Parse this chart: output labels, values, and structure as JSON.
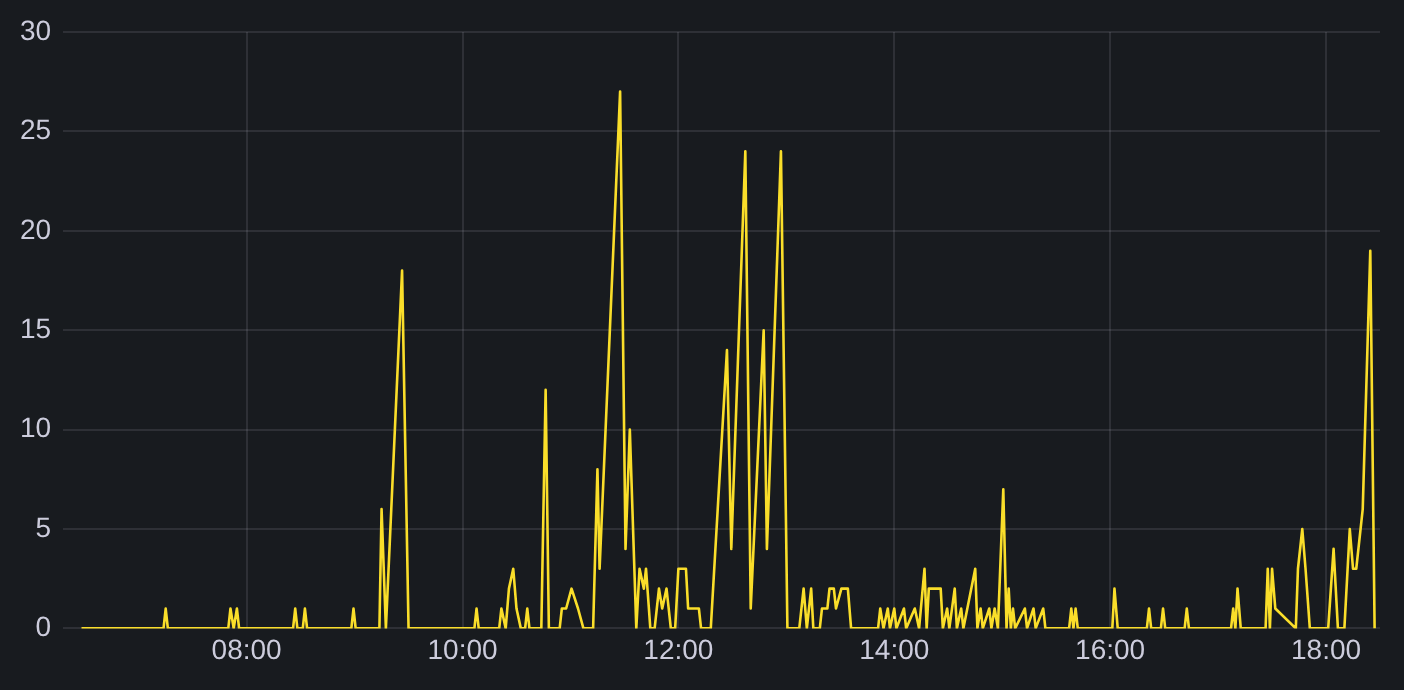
{
  "chart_data": {
    "type": "line",
    "grid": true,
    "marker": "none",
    "line_style": "solid",
    "legend": false,
    "xlim": [
      6.3,
      18.5
    ],
    "ylim": [
      0,
      30
    ],
    "yticks": [
      0,
      5,
      10,
      15,
      20,
      25,
      30
    ],
    "xticks": [
      {
        "value": 8,
        "label": "08:00"
      },
      {
        "value": 10,
        "label": "10:00"
      },
      {
        "value": 12,
        "label": "12:00"
      },
      {
        "value": 14,
        "label": "14:00"
      },
      {
        "value": 16,
        "label": "16:00"
      },
      {
        "value": 18,
        "label": "18:00"
      }
    ],
    "series": [
      {
        "color": "#fade2a",
        "x": [
          6.47,
          7.23,
          7.25,
          7.27,
          7.83,
          7.85,
          7.88,
          7.91,
          7.93,
          8.43,
          8.45,
          8.47,
          8.52,
          8.54,
          8.56,
          8.97,
          8.99,
          9.01,
          9.23,
          9.25,
          9.29,
          9.44,
          9.5,
          10.11,
          10.13,
          10.15,
          10.34,
          10.36,
          10.4,
          10.43,
          10.47,
          10.5,
          10.54,
          10.58,
          10.6,
          10.62,
          10.73,
          10.77,
          10.8,
          10.9,
          10.92,
          10.96,
          11.01,
          11.07,
          11.12,
          11.21,
          11.25,
          11.27,
          11.46,
          11.51,
          11.55,
          11.61,
          11.64,
          11.68,
          11.7,
          11.74,
          11.78,
          11.82,
          11.85,
          11.89,
          11.93,
          11.97,
          12.0,
          12.07,
          12.09,
          12.19,
          12.21,
          12.3,
          12.45,
          12.49,
          12.62,
          12.67,
          12.79,
          12.82,
          12.95,
          13.01,
          13.12,
          13.16,
          13.19,
          13.23,
          13.25,
          13.31,
          13.33,
          13.38,
          13.4,
          13.44,
          13.46,
          13.51,
          13.57,
          13.6,
          13.85,
          13.87,
          13.9,
          13.94,
          13.96,
          14.0,
          14.02,
          14.09,
          14.11,
          14.19,
          14.23,
          14.28,
          14.3,
          14.32,
          14.43,
          14.45,
          14.49,
          14.51,
          14.56,
          14.58,
          14.62,
          14.64,
          14.75,
          14.77,
          14.8,
          14.82,
          14.88,
          14.9,
          14.93,
          14.96,
          15.01,
          15.04,
          15.06,
          15.08,
          15.1,
          15.12,
          15.21,
          15.23,
          15.29,
          15.31,
          15.38,
          15.4,
          15.62,
          15.64,
          15.66,
          15.68,
          15.7,
          16.02,
          16.04,
          16.07,
          16.34,
          16.36,
          16.38,
          16.47,
          16.49,
          16.51,
          16.69,
          16.71,
          16.73,
          17.12,
          17.14,
          17.16,
          17.18,
          17.21,
          17.44,
          17.46,
          17.48,
          17.5,
          17.53,
          17.72,
          17.74,
          17.78,
          17.81,
          17.85,
          18.02,
          18.07,
          18.11,
          18.17,
          18.22,
          18.25,
          18.28,
          18.34,
          18.41,
          18.45
        ],
        "values": [
          0,
          0,
          1,
          0,
          0,
          1,
          0,
          1,
          0,
          0,
          1,
          0,
          0,
          1,
          0,
          0,
          1,
          0,
          0,
          6,
          0,
          18,
          0,
          0,
          1,
          0,
          0,
          1,
          0,
          2,
          3,
          1,
          0,
          0,
          1,
          0,
          0,
          12,
          0,
          0,
          1,
          1,
          2,
          1,
          0,
          0,
          8,
          3,
          27,
          4,
          10,
          0,
          3,
          2,
          3,
          0,
          0,
          2,
          1,
          2,
          0,
          0,
          3,
          3,
          1,
          1,
          0,
          0,
          14,
          4,
          24,
          1,
          15,
          4,
          24,
          0,
          0,
          2,
          0,
          2,
          0,
          0,
          1,
          1,
          2,
          2,
          1,
          2,
          2,
          0,
          0,
          1,
          0,
          1,
          0,
          1,
          0,
          1,
          0,
          1,
          0,
          3,
          0,
          2,
          2,
          0,
          1,
          0,
          2,
          0,
          1,
          0,
          3,
          0,
          1,
          0,
          1,
          0,
          1,
          0,
          7,
          0,
          2,
          0,
          1,
          0,
          1,
          0,
          1,
          0,
          1,
          0,
          0,
          1,
          0,
          1,
          0,
          0,
          2,
          0,
          0,
          1,
          0,
          0,
          1,
          0,
          0,
          1,
          0,
          0,
          1,
          0,
          2,
          0,
          0,
          3,
          0,
          3,
          1,
          0,
          3,
          5,
          3,
          0,
          0,
          4,
          0,
          0,
          5,
          3,
          3,
          6,
          19,
          0
        ]
      }
    ]
  }
}
